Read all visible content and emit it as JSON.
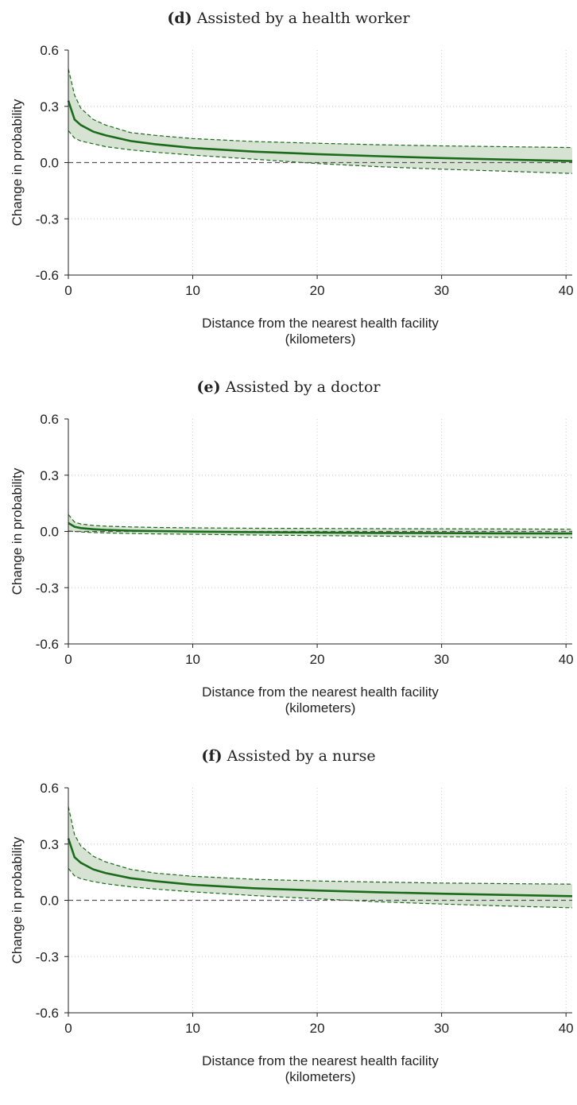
{
  "charts": [
    {
      "label": "(d)",
      "title": "Assisted by a health worker",
      "xlabel_line1": "Distance from the nearest health facility",
      "xlabel_line2": "(kilometers)",
      "ylabel": "Change in probability",
      "xticks": [
        "0",
        "10",
        "20",
        "30",
        "40"
      ],
      "yticks": [
        "0.6",
        "0.3",
        "0.0",
        "-0.3",
        "-0.6"
      ]
    },
    {
      "label": "(e)",
      "title": "Assisted by a doctor",
      "xlabel_line1": "Distance from the nearest health facility",
      "xlabel_line2": "(kilometers)",
      "ylabel": "Change in probability",
      "xticks": [
        "0",
        "10",
        "20",
        "30",
        "40"
      ],
      "yticks": [
        "0.6",
        "0.3",
        "0.0",
        "-0.3",
        "-0.6"
      ]
    },
    {
      "label": "(f)",
      "title": "Assisted by a nurse",
      "xlabel_line1": "Distance from the nearest health facility",
      "xlabel_line2": "(kilometers)",
      "ylabel": "Change in probability",
      "xticks": [
        "0",
        "10",
        "20",
        "30",
        "40"
      ],
      "yticks": [
        "0.6",
        "0.3",
        "0.0",
        "-0.3",
        "-0.6"
      ]
    }
  ],
  "colors": {
    "line": "#1a6b1a",
    "band": "#d6e3d3",
    "grid": "#cccccc",
    "zero": "#555555"
  },
  "chart_data": [
    {
      "type": "line",
      "title": "(d) Assisted by a health worker",
      "xlabel": "Distance from the nearest health facility (kilometers)",
      "ylabel": "Change in probability",
      "xlim": [
        0,
        40.5
      ],
      "ylim": [
        -0.6,
        0.6
      ],
      "grid": true,
      "x": [
        0,
        0.5,
        1,
        2,
        3,
        5,
        7,
        10,
        15,
        20,
        25,
        30,
        35,
        40.5
      ],
      "y": [
        0.33,
        0.23,
        0.2,
        0.165,
        0.145,
        0.115,
        0.098,
        0.078,
        0.058,
        0.045,
        0.034,
        0.024,
        0.016,
        0.008
      ],
      "upper": [
        0.5,
        0.36,
        0.29,
        0.23,
        0.2,
        0.16,
        0.145,
        0.128,
        0.112,
        0.103,
        0.095,
        0.089,
        0.085,
        0.08
      ],
      "lower": [
        0.17,
        0.13,
        0.115,
        0.1,
        0.085,
        0.068,
        0.055,
        0.04,
        0.018,
        -0.005,
        -0.022,
        -0.035,
        -0.046,
        -0.058
      ]
    },
    {
      "type": "line",
      "title": "(e) Assisted by a doctor",
      "xlabel": "Distance from the nearest health facility (kilometers)",
      "ylabel": "Change in probability",
      "xlim": [
        0,
        40.5
      ],
      "ylim": [
        -0.6,
        0.6
      ],
      "grid": true,
      "x": [
        0,
        0.5,
        1,
        2,
        3,
        5,
        7,
        10,
        15,
        20,
        25,
        30,
        35,
        40.5
      ],
      "y": [
        0.045,
        0.025,
        0.018,
        0.012,
        0.008,
        0.004,
        0.002,
        -0.001,
        -0.004,
        -0.006,
        -0.008,
        -0.009,
        -0.01,
        -0.011
      ],
      "upper": [
        0.09,
        0.05,
        0.04,
        0.032,
        0.028,
        0.024,
        0.021,
        0.019,
        0.017,
        0.016,
        0.015,
        0.014,
        0.013,
        0.012
      ],
      "lower": [
        0.002,
        0.0,
        -0.003,
        -0.006,
        -0.008,
        -0.011,
        -0.013,
        -0.015,
        -0.019,
        -0.022,
        -0.025,
        -0.028,
        -0.031,
        -0.034
      ]
    },
    {
      "type": "line",
      "title": "(f) Assisted by a nurse",
      "xlabel": "Distance from the nearest health facility (kilometers)",
      "ylabel": "Change in probability",
      "xlim": [
        0,
        40.5
      ],
      "ylim": [
        -0.6,
        0.6
      ],
      "grid": true,
      "x": [
        0,
        0.5,
        1,
        2,
        3,
        5,
        7,
        10,
        15,
        20,
        25,
        30,
        35,
        40.5
      ],
      "y": [
        0.33,
        0.23,
        0.2,
        0.165,
        0.145,
        0.118,
        0.102,
        0.083,
        0.064,
        0.052,
        0.043,
        0.035,
        0.029,
        0.022
      ],
      "upper": [
        0.5,
        0.35,
        0.29,
        0.235,
        0.205,
        0.165,
        0.145,
        0.128,
        0.112,
        0.103,
        0.097,
        0.092,
        0.089,
        0.086
      ],
      "lower": [
        0.17,
        0.13,
        0.115,
        0.1,
        0.088,
        0.072,
        0.06,
        0.045,
        0.025,
        0.008,
        -0.008,
        -0.02,
        -0.03,
        -0.04
      ]
    }
  ]
}
